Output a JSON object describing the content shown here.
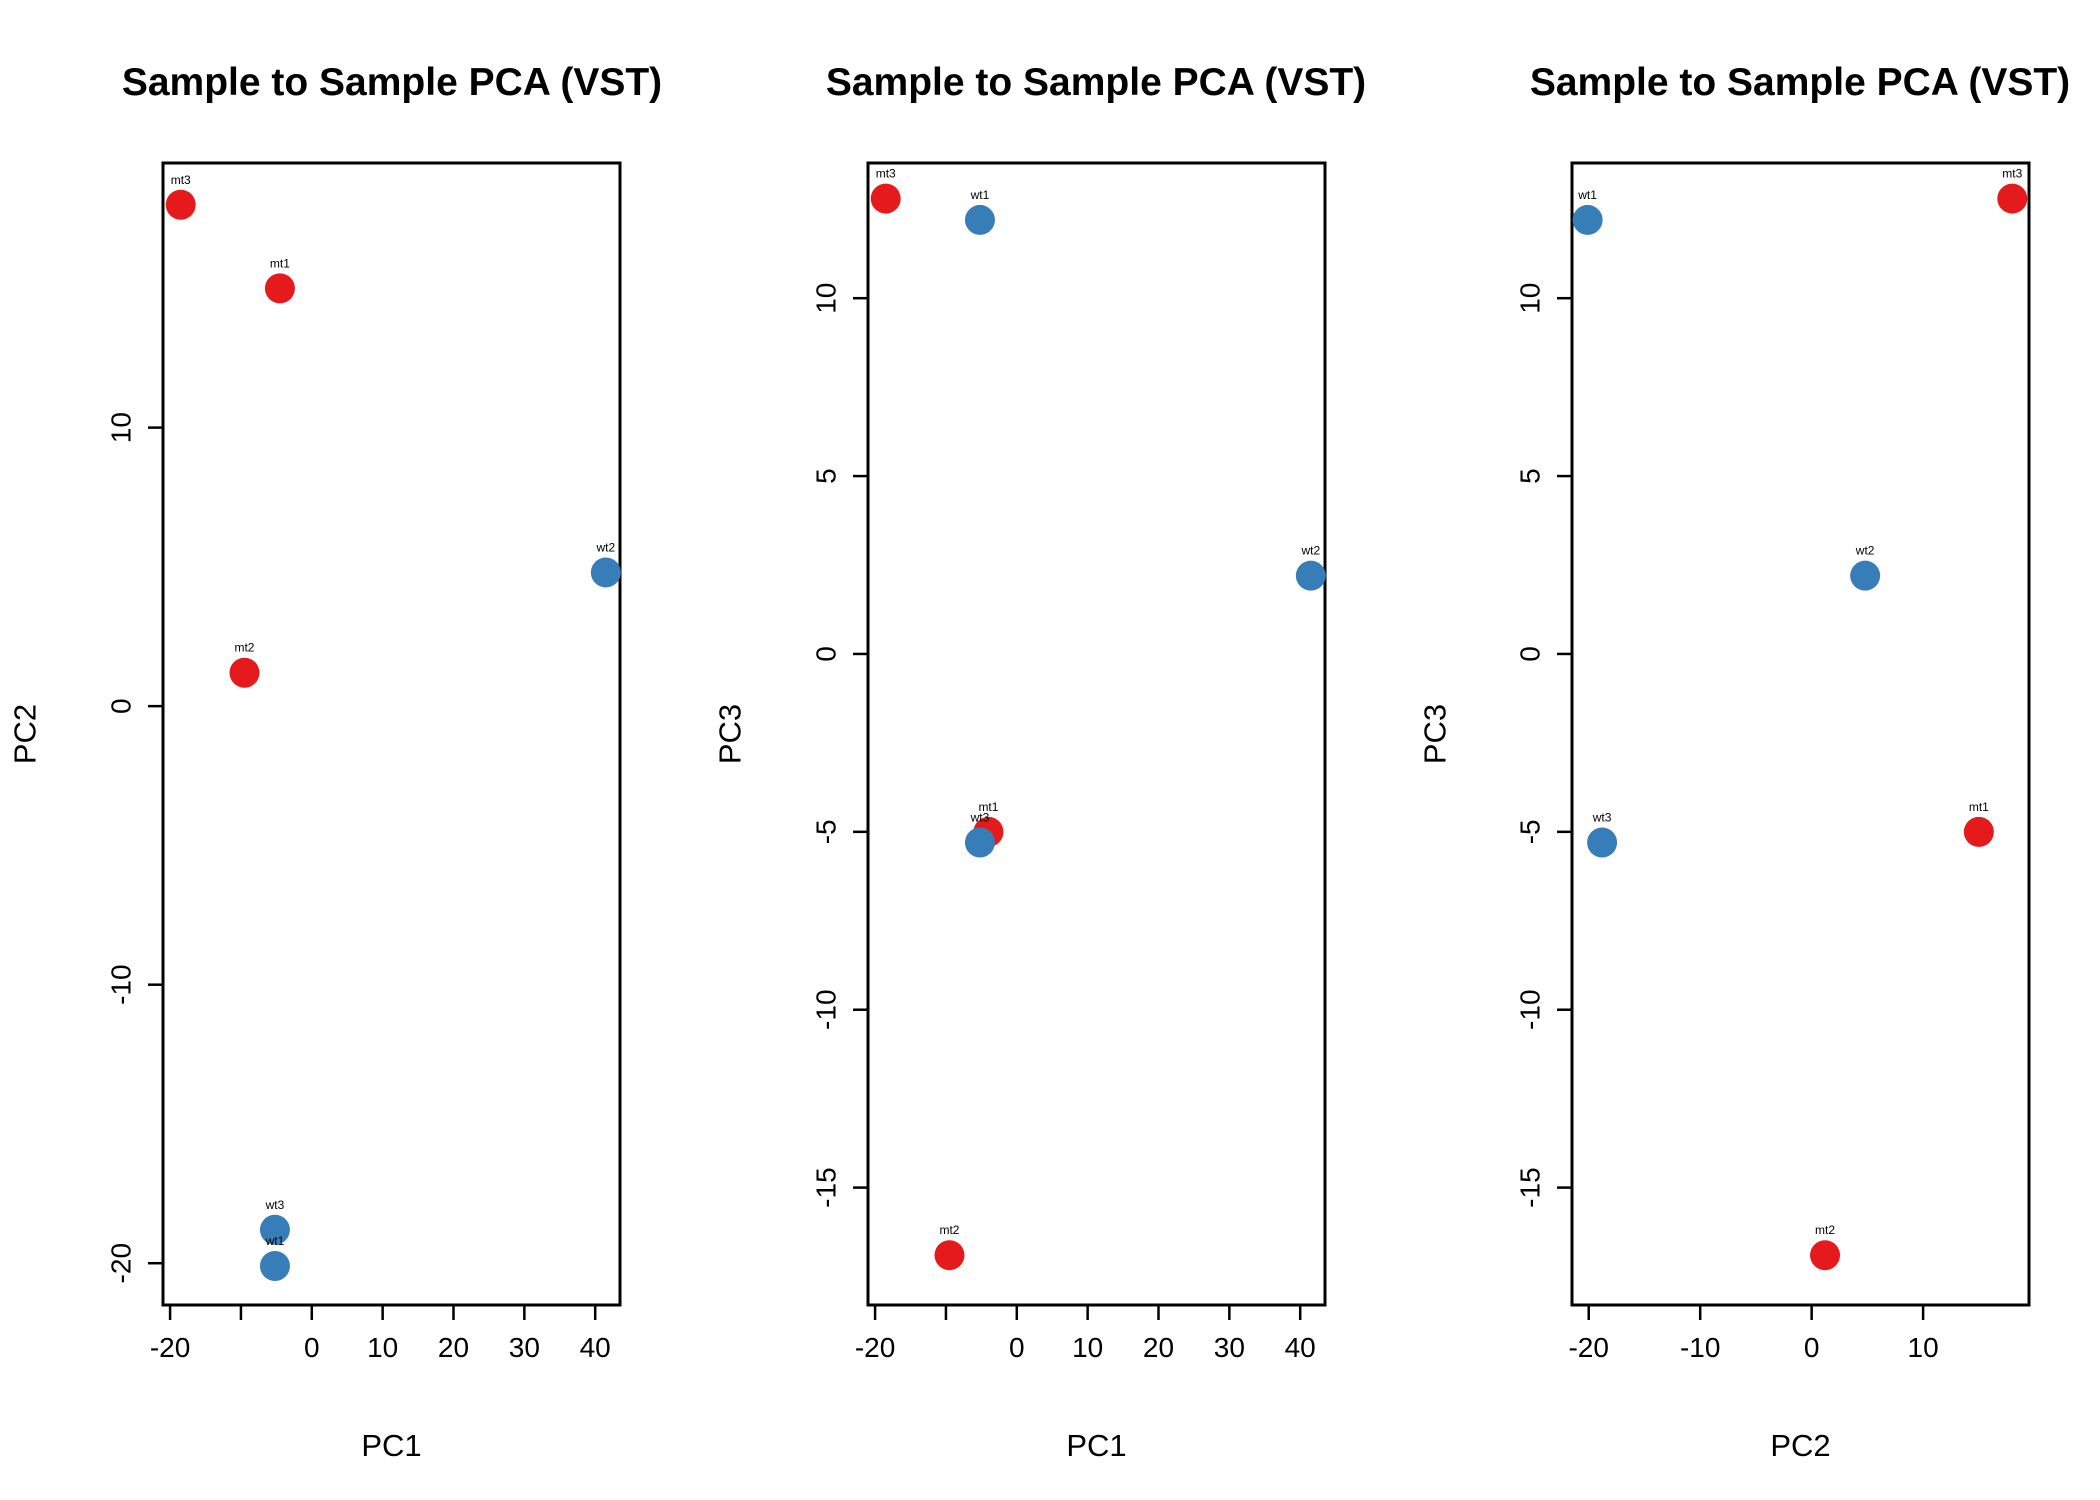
{
  "colors": {
    "mt": "#E41A1C",
    "wt": "#377EB8"
  },
  "chart_data": [
    {
      "type": "scatter",
      "title": "Sample to Sample PCA (VST)",
      "xlabel": "PC1",
      "ylabel": "PC2",
      "xlim": [
        -21,
        43.5
      ],
      "ylim": [
        -21.5,
        19.5
      ],
      "xticks": [
        -20,
        -10,
        0,
        10,
        20,
        30,
        40
      ],
      "xtick_labels": [
        "-20",
        "",
        "0",
        "10",
        "20",
        "30",
        "40"
      ],
      "yticks": [
        -20,
        -10,
        0,
        10
      ],
      "ytick_labels": [
        "-20",
        "-10",
        "0",
        "10"
      ],
      "points": [
        {
          "label": "mt3",
          "group": "mt",
          "x": -18.5,
          "y": 18.0
        },
        {
          "label": "mt1",
          "group": "mt",
          "x": -4.5,
          "y": 15.0
        },
        {
          "label": "wt2",
          "group": "wt",
          "x": 41.5,
          "y": 4.8
        },
        {
          "label": "mt2",
          "group": "mt",
          "x": -9.5,
          "y": 1.2
        },
        {
          "label": "wt3",
          "group": "wt",
          "x": -5.2,
          "y": -18.8
        },
        {
          "label": "wt1",
          "group": "wt",
          "x": -5.2,
          "y": -20.1
        }
      ]
    },
    {
      "type": "scatter",
      "title": "Sample to Sample PCA (VST)",
      "xlabel": "PC1",
      "ylabel": "PC3",
      "xlim": [
        -21,
        43.5
      ],
      "ylim": [
        -18.3,
        13.8
      ],
      "xticks": [
        -20,
        -10,
        0,
        10,
        20,
        30,
        40
      ],
      "xtick_labels": [
        "-20",
        "",
        "0",
        "10",
        "20",
        "30",
        "40"
      ],
      "yticks": [
        -15,
        -10,
        -5,
        0,
        5,
        10
      ],
      "ytick_labels": [
        "-15",
        "-10",
        "-5",
        "0",
        "5",
        "10"
      ],
      "points": [
        {
          "label": "mt3",
          "group": "mt",
          "x": -18.5,
          "y": 12.8
        },
        {
          "label": "wt1",
          "group": "wt",
          "x": -5.2,
          "y": 12.2
        },
        {
          "label": "wt2",
          "group": "wt",
          "x": 41.5,
          "y": 2.2
        },
        {
          "label": "mt1",
          "group": "mt",
          "x": -4.0,
          "y": -5.0
        },
        {
          "label": "wt3",
          "group": "wt",
          "x": -5.2,
          "y": -5.3
        },
        {
          "label": "mt2",
          "group": "mt",
          "x": -9.5,
          "y": -16.9
        }
      ]
    },
    {
      "type": "scatter",
      "title": "Sample to Sample PCA (VST)",
      "xlabel": "PC2",
      "ylabel": "PC3",
      "xlim": [
        -21.5,
        19.5
      ],
      "ylim": [
        -18.3,
        13.8
      ],
      "xticks": [
        -20,
        -10,
        0,
        10
      ],
      "xtick_labels": [
        "-20",
        "-10",
        "0",
        "10"
      ],
      "yticks": [
        -15,
        -10,
        -5,
        0,
        5,
        10
      ],
      "ytick_labels": [
        "-15",
        "-10",
        "-5",
        "0",
        "5",
        "10"
      ],
      "points": [
        {
          "label": "wt1",
          "group": "wt",
          "x": -20.1,
          "y": 12.2
        },
        {
          "label": "mt3",
          "group": "mt",
          "x": 18.0,
          "y": 12.8
        },
        {
          "label": "wt2",
          "group": "wt",
          "x": 4.8,
          "y": 2.2
        },
        {
          "label": "wt3",
          "group": "wt",
          "x": -18.8,
          "y": -5.3
        },
        {
          "label": "mt1",
          "group": "mt",
          "x": 15.0,
          "y": -5.0
        },
        {
          "label": "mt2",
          "group": "mt",
          "x": 1.2,
          "y": -16.9
        }
      ]
    }
  ]
}
